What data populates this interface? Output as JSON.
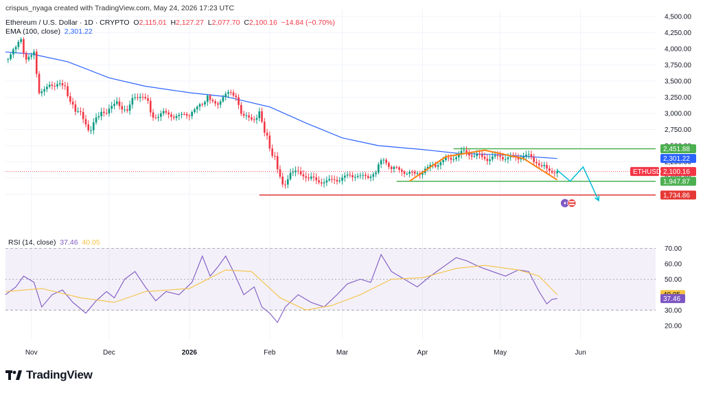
{
  "header": {
    "credit": "crispus_nyaga created with TradingView.com, May 24, 2026 17:23 UTC",
    "symbol": "Ethereum / U.S. Dollar · 1D · CRYPTO",
    "o_label": "O",
    "o": "2,115.01",
    "h_label": "H",
    "h": "2,127.27",
    "l_label": "L",
    "l": "2,077.70",
    "c_label": "C",
    "c": "2,100.16",
    "change": "−14.84 (−0.70%)",
    "ema_label": "EMA (100, close)",
    "ema_value": "2,301.22"
  },
  "rsi_legend": {
    "label": "RSI (14, close)",
    "rsi": "37.46",
    "ma": "40.05"
  },
  "brand": {
    "name": "TradingView",
    "logo": "tradingview-logo"
  },
  "colors": {
    "up": "#089981",
    "down": "#f23645",
    "ema": "#2962ff",
    "rsi": "#7e57c2",
    "rsi_ma": "#f5c242",
    "support": "#4caf50",
    "low_line": "#e53935",
    "arc": "#ff7f0e",
    "projection": "#00bcd4"
  },
  "chart_data": [
    {
      "type": "candlestick",
      "title": "Ethereum / U.S. Dollar · 1D · CRYPTO",
      "ylim": [
        1500,
        4500
      ],
      "y_ticks": [
        "4,500.00",
        "4,250.00",
        "4,000.00",
        "3,750.00",
        "3,500.00",
        "3,250.00",
        "3,000.00",
        "2,750.00",
        "2,500.00",
        "2,250.00",
        "2,000.00",
        "1,750.00"
      ],
      "x_ticks": [
        "Nov",
        "Dec",
        "2026",
        "Feb",
        "Mar",
        "Apr",
        "May",
        "Jun"
      ],
      "x_tick_dates": [
        "2025-11-01",
        "2025-12-01",
        "2026-01-01",
        "2026-02-01",
        "2026-03-01",
        "2026-04-01",
        "2026-05-01",
        "2026-06-01"
      ],
      "date_range": [
        "2025-10-22",
        "2026-06-30"
      ],
      "price_path": [
        [
          "2025-10-22",
          3850
        ],
        [
          "2025-10-25",
          3950
        ],
        [
          "2025-10-28",
          4150
        ],
        [
          "2025-10-30",
          3850
        ],
        [
          "2025-11-02",
          3880
        ],
        [
          "2025-11-04",
          3350
        ],
        [
          "2025-11-08",
          3400
        ],
        [
          "2025-11-12",
          3500
        ],
        [
          "2025-11-16",
          3200
        ],
        [
          "2025-11-21",
          2900
        ],
        [
          "2025-11-23",
          2750
        ],
        [
          "2025-11-28",
          3000
        ],
        [
          "2025-12-04",
          3150
        ],
        [
          "2025-12-08",
          3050
        ],
        [
          "2025-12-11",
          3250
        ],
        [
          "2025-12-14",
          3300
        ],
        [
          "2025-12-18",
          2950
        ],
        [
          "2025-12-22",
          3000
        ],
        [
          "2025-12-28",
          2950
        ],
        [
          "2026-01-01",
          3000
        ],
        [
          "2026-01-05",
          3100
        ],
        [
          "2026-01-08",
          3280
        ],
        [
          "2026-01-11",
          3100
        ],
        [
          "2026-01-15",
          3320
        ],
        [
          "2026-01-19",
          3250
        ],
        [
          "2026-01-22",
          2950
        ],
        [
          "2026-01-25",
          2900
        ],
        [
          "2026-01-28",
          3000
        ],
        [
          "2026-01-30",
          2700
        ],
        [
          "2026-02-03",
          2300
        ],
        [
          "2026-02-06",
          1850
        ],
        [
          "2026-02-09",
          2100
        ],
        [
          "2026-02-14",
          2050
        ],
        [
          "2026-02-19",
          1950
        ],
        [
          "2026-02-24",
          1950
        ],
        [
          "2026-03-01",
          2000
        ],
        [
          "2026-03-06",
          2050
        ],
        [
          "2026-03-10",
          2000
        ],
        [
          "2026-03-14",
          2100
        ],
        [
          "2026-03-17",
          2300
        ],
        [
          "2026-03-20",
          2150
        ],
        [
          "2026-03-25",
          2100
        ],
        [
          "2026-03-29",
          2050
        ],
        [
          "2026-04-03",
          2150
        ],
        [
          "2026-04-08",
          2250
        ],
        [
          "2026-04-13",
          2320
        ],
        [
          "2026-04-17",
          2400
        ],
        [
          "2026-04-21",
          2350
        ],
        [
          "2026-04-26",
          2300
        ],
        [
          "2026-05-01",
          2330
        ],
        [
          "2026-05-06",
          2300
        ],
        [
          "2026-05-11",
          2350
        ],
        [
          "2026-05-15",
          2250
        ],
        [
          "2026-05-19",
          2120
        ],
        [
          "2026-05-23",
          2100
        ]
      ],
      "last_close": 2100.16,
      "ema": {
        "name": "EMA (100, close)",
        "points": [
          [
            "2025-10-22",
            3950
          ],
          [
            "2025-11-01",
            3920
          ],
          [
            "2025-11-15",
            3800
          ],
          [
            "2025-12-01",
            3550
          ],
          [
            "2025-12-15",
            3420
          ],
          [
            "2026-01-01",
            3320
          ],
          [
            "2026-01-15",
            3260
          ],
          [
            "2026-02-01",
            3100
          ],
          [
            "2026-02-15",
            2850
          ],
          [
            "2026-03-01",
            2620
          ],
          [
            "2026-03-15",
            2500
          ],
          [
            "2026-04-01",
            2440
          ],
          [
            "2026-04-15",
            2380
          ],
          [
            "2026-05-01",
            2360
          ],
          [
            "2026-05-23",
            2301.22
          ]
        ]
      },
      "horizontal_levels": [
        {
          "price": 2451.88,
          "label": "2,451.88",
          "color": "#4caf50",
          "from": "2026-04-13",
          "to": "2026-06-30"
        },
        {
          "price": 1947.87,
          "label": "1,947.87",
          "color": "#4caf50",
          "from": "2026-03-22",
          "to": "2026-06-30"
        },
        {
          "price": 1734.86,
          "label": "1,734.86",
          "color": "#e53935",
          "from": "2026-01-28",
          "to": "2026-06-30"
        }
      ],
      "price_tags": [
        {
          "price": 2301.22,
          "label": "2,301.22",
          "color": "#2962ff"
        },
        {
          "price": 2100.16,
          "label": "2,100.16",
          "name": "ETHUSD",
          "color": "#f23645"
        }
      ],
      "arc": [
        [
          "2026-03-27",
          1950
        ],
        [
          "2026-04-10",
          2330
        ],
        [
          "2026-04-25",
          2430
        ],
        [
          "2026-05-10",
          2300
        ],
        [
          "2026-05-23",
          1970
        ]
      ],
      "projection": [
        [
          "2026-05-23",
          2120
        ],
        [
          "2026-05-28",
          1950
        ],
        [
          "2026-06-02",
          2170
        ],
        [
          "2026-06-08",
          1650
        ]
      ]
    },
    {
      "type": "line",
      "title": "RSI (14, close)",
      "ylim": [
        15,
        72
      ],
      "y_ticks": [
        "70.00",
        "60.00",
        "50.00",
        "40.00",
        "30.00",
        "20.00"
      ],
      "bands": [
        30,
        50,
        70
      ],
      "series": [
        {
          "name": "RSI (14, close)",
          "last": 37.46,
          "points": [
            [
              "2025-10-22",
              40
            ],
            [
              "2025-10-26",
              45
            ],
            [
              "2025-10-29",
              52
            ],
            [
              "2025-11-02",
              48
            ],
            [
              "2025-11-05",
              32
            ],
            [
              "2025-11-09",
              40
            ],
            [
              "2025-11-13",
              43
            ],
            [
              "2025-11-17",
              35
            ],
            [
              "2025-11-22",
              28
            ],
            [
              "2025-11-26",
              36
            ],
            [
              "2025-11-30",
              42
            ],
            [
              "2025-12-03",
              38
            ],
            [
              "2025-12-07",
              50
            ],
            [
              "2025-12-11",
              55
            ],
            [
              "2025-12-15",
              45
            ],
            [
              "2025-12-19",
              36
            ],
            [
              "2025-12-23",
              42
            ],
            [
              "2025-12-28",
              40
            ],
            [
              "2026-01-02",
              48
            ],
            [
              "2026-01-06",
              65
            ],
            [
              "2026-01-09",
              52
            ],
            [
              "2026-01-12",
              58
            ],
            [
              "2026-01-15",
              65
            ],
            [
              "2026-01-18",
              55
            ],
            [
              "2026-01-22",
              40
            ],
            [
              "2026-01-26",
              45
            ],
            [
              "2026-01-29",
              32
            ],
            [
              "2026-02-01",
              28
            ],
            [
              "2026-02-04",
              22
            ],
            [
              "2026-02-07",
              32
            ],
            [
              "2026-02-12",
              40
            ],
            [
              "2026-02-17",
              35
            ],
            [
              "2026-02-22",
              32
            ],
            [
              "2026-02-27",
              40
            ],
            [
              "2026-03-03",
              47
            ],
            [
              "2026-03-08",
              50
            ],
            [
              "2026-03-12",
              48
            ],
            [
              "2026-03-16",
              66
            ],
            [
              "2026-03-20",
              55
            ],
            [
              "2026-03-25",
              50
            ],
            [
              "2026-03-30",
              45
            ],
            [
              "2026-04-04",
              52
            ],
            [
              "2026-04-09",
              58
            ],
            [
              "2026-04-14",
              64
            ],
            [
              "2026-04-18",
              62
            ],
            [
              "2026-04-23",
              58
            ],
            [
              "2026-04-28",
              55
            ],
            [
              "2026-05-03",
              52
            ],
            [
              "2026-05-08",
              56
            ],
            [
              "2026-05-12",
              55
            ],
            [
              "2026-05-16",
              42
            ],
            [
              "2026-05-19",
              34
            ],
            [
              "2026-05-21",
              37
            ],
            [
              "2026-05-23",
              37.46
            ]
          ]
        },
        {
          "name": "RSI-based MA",
          "last": 40.05,
          "points": [
            [
              "2025-10-22",
              42
            ],
            [
              "2025-11-05",
              44
            ],
            [
              "2025-11-20",
              38
            ],
            [
              "2025-12-03",
              35
            ],
            [
              "2025-12-15",
              42
            ],
            [
              "2026-01-01",
              44
            ],
            [
              "2026-01-15",
              56
            ],
            [
              "2026-01-25",
              55
            ],
            [
              "2026-02-05",
              38
            ],
            [
              "2026-02-15",
              30
            ],
            [
              "2026-02-25",
              33
            ],
            [
              "2026-03-08",
              40
            ],
            [
              "2026-03-20",
              50
            ],
            [
              "2026-04-01",
              51
            ],
            [
              "2026-04-14",
              57
            ],
            [
              "2026-04-25",
              59
            ],
            [
              "2026-05-08",
              56
            ],
            [
              "2026-05-16",
              52
            ],
            [
              "2026-05-23",
              40.05
            ]
          ]
        }
      ]
    }
  ]
}
